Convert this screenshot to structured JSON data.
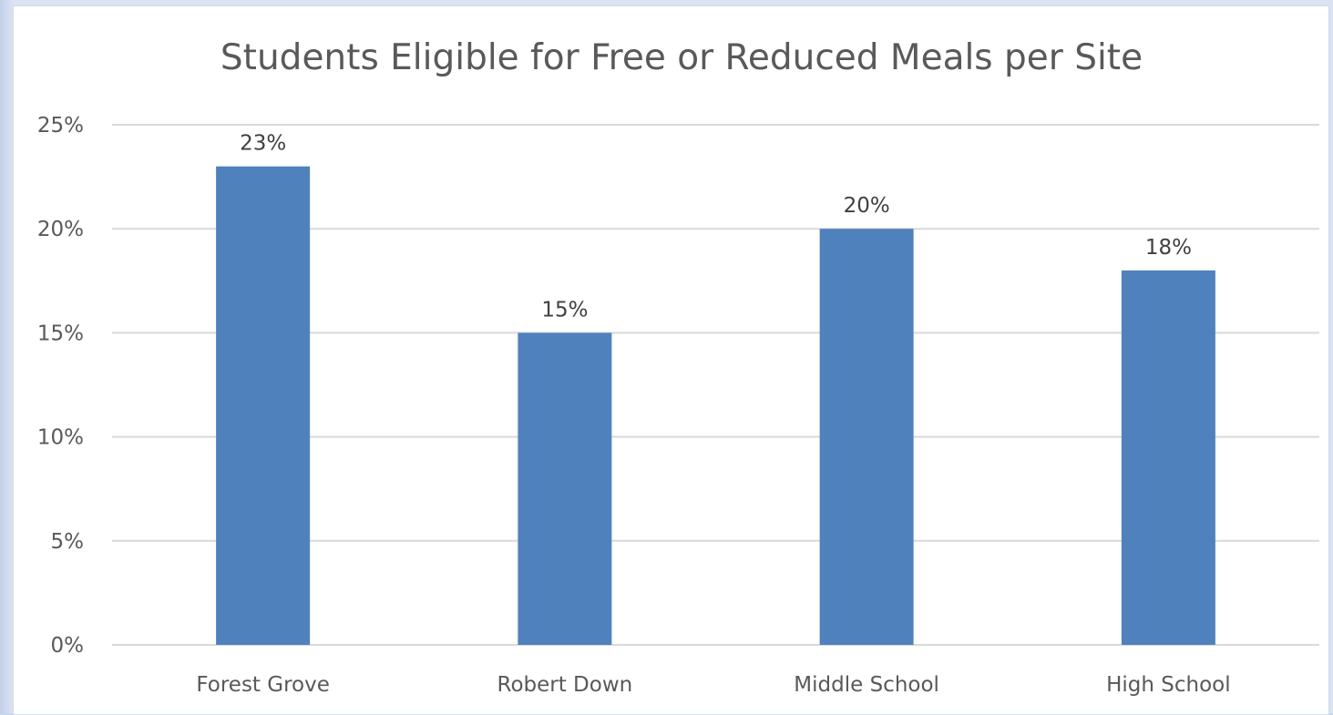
{
  "chart_data": {
    "type": "bar",
    "title": "Students Eligible for Free or Reduced Meals per Site",
    "xlabel": "",
    "ylabel": "",
    "categories": [
      "Forest Grove",
      "Robert Down",
      "Middle School",
      "High School"
    ],
    "values": [
      0.23,
      0.15,
      0.2,
      0.18
    ],
    "data_labels": [
      "23%",
      "15%",
      "20%",
      "18%"
    ],
    "ylim": [
      0,
      0.25
    ],
    "yticks": [
      0,
      0.05,
      0.1,
      0.15,
      0.2,
      0.25
    ],
    "ytick_labels": [
      "0%",
      "5%",
      "10%",
      "15%",
      "20%",
      "25%"
    ],
    "grid": true,
    "legend": "none",
    "bar_color": "#4f81bd"
  }
}
